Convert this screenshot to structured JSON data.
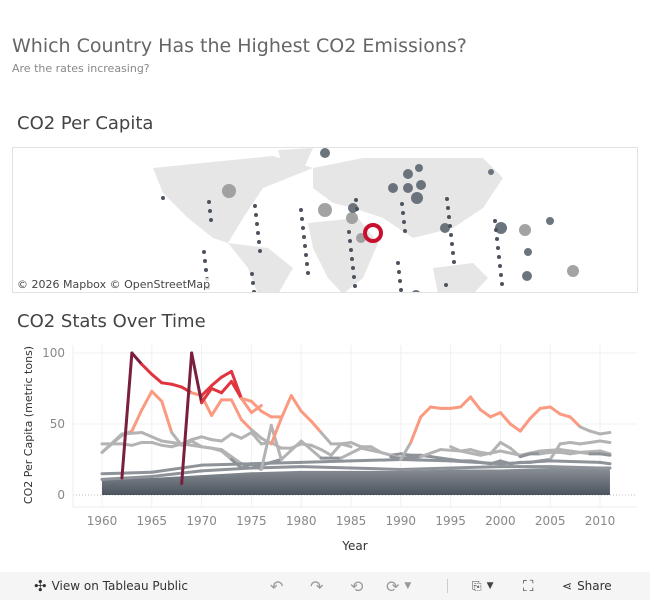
{
  "header": {
    "title": "Which Country Has the Highest CO2 Emissions?",
    "subtitle": "Are the rates increasing?"
  },
  "map": {
    "title": "CO2 Per Capita",
    "attribution": "© 2026 Mapbox  © OpenStreetMap"
  },
  "chart_section": {
    "title": "CO2 Stats Over Time"
  },
  "toolbar": {
    "view_label": "View on Tableau Public",
    "share_label": "Share",
    "icons": [
      "tableau-logo-icon",
      "undo-icon",
      "redo-icon",
      "revert-icon",
      "refresh-icon",
      "download-icon",
      "fullscreen-icon",
      "share-icon"
    ]
  },
  "colors": {
    "low": "#4b535d",
    "mid": "#b3b3b3",
    "high": "#fa9a80",
    "peak": "#e0343f",
    "spike": "#7a1f3d",
    "highlight": "#c8102e"
  },
  "chart_data": {
    "type": "line",
    "xlabel": "Year",
    "ylabel": "CO2 Per Capita (metric tons)",
    "xlim": [
      1957,
      2014
    ],
    "ylim": [
      -12,
      106
    ],
    "xticks": [
      1960,
      1965,
      1970,
      1975,
      1980,
      1985,
      1990,
      1995,
      2000,
      2005,
      2010
    ],
    "yticks": [
      0,
      50,
      100
    ],
    "grid": true,
    "series": [
      {
        "x": [
          1960,
          1961,
          1962,
          1963,
          1964,
          1965,
          1966,
          1967,
          1968,
          1969,
          1970,
          1971,
          1972,
          1973,
          1974,
          1975,
          1976,
          1977,
          1978,
          1979,
          1980,
          1981,
          1982,
          1983,
          1984,
          1985,
          1986,
          1987,
          1988,
          1989,
          1990,
          1991,
          1992,
          1993,
          1994,
          1995,
          1996,
          1997,
          1998,
          1999,
          2000,
          2001,
          2002,
          2003,
          2004,
          2005,
          2006,
          2007,
          2008,
          2009,
          2010,
          2011
        ],
        "y": [
          36,
          36,
          36,
          35,
          37,
          37,
          35,
          34,
          36,
          39,
          41,
          39,
          38,
          43,
          40,
          44,
          36,
          37,
          33,
          33,
          36,
          35,
          32,
          28,
          36,
          37,
          34,
          34,
          30,
          28,
          29,
          28,
          28,
          27,
          26,
          25,
          24,
          24,
          23,
          22,
          24,
          22,
          23,
          23,
          24,
          25,
          36,
          37,
          36,
          37,
          38,
          37
        ]
      },
      {
        "x": [
          1960,
          1962,
          1964,
          1966,
          1968,
          1970,
          1972,
          1974,
          1976,
          1978,
          1980,
          1982,
          1984,
          1986,
          1988,
          1990,
          1992,
          1994,
          1996,
          1998,
          2000,
          2002,
          2004,
          2006,
          2008,
          2010,
          2011
        ],
        "y": [
          30,
          43,
          44,
          38,
          36,
          34,
          32,
          22,
          21,
          25,
          38,
          26,
          26,
          33,
          30,
          26,
          27,
          32,
          31,
          28,
          31,
          28,
          31,
          32,
          30,
          31,
          29
        ]
      },
      {
        "x": [
          1995,
          1996,
          1997,
          1998,
          1999,
          2000,
          2001,
          2002,
          2003,
          2004,
          2005,
          2006,
          2007,
          2008,
          2009,
          2010,
          2011
        ],
        "y": [
          34,
          31,
          32,
          30,
          29,
          37,
          33,
          27,
          29,
          29,
          30,
          30,
          29,
          30,
          29,
          29,
          28
        ]
      },
      {
        "x": [
          1960,
          1965,
          1970,
          1975,
          1980,
          1985,
          1990,
          1995,
          2000,
          2005,
          2010,
          2011
        ],
        "y": [
          15,
          16,
          21,
          22,
          23,
          24,
          25,
          24,
          22,
          24,
          23,
          22
        ]
      },
      {
        "x": [
          1960,
          1965,
          1970,
          1975,
          1980,
          1985,
          1990,
          1995,
          2000,
          2005,
          2010,
          2011
        ],
        "y": [
          11,
          13,
          17,
          19,
          20,
          19,
          18,
          19,
          20,
          20,
          19,
          19
        ]
      },
      {
        "x": [
          1960,
          1962,
          1963,
          1964,
          1965,
          1966,
          1967,
          1968,
          1969,
          1970,
          1971,
          1972,
          1973,
          1974,
          1975,
          1976,
          1977,
          1978
        ],
        "y": [
          30,
          42,
          45,
          60,
          73,
          66,
          44,
          35,
          38,
          34,
          33,
          31,
          25,
          19,
          22,
          18,
          49,
          25
        ]
      },
      {
        "x": [
          1970,
          1971,
          1972,
          1973,
          1974,
          1975,
          1976,
          1977,
          1978,
          1979,
          1980,
          1981,
          1982,
          1983,
          1984,
          1985
        ],
        "y": [
          70,
          56,
          67,
          67,
          53,
          46,
          40,
          36,
          54,
          70,
          59,
          52,
          44,
          36,
          36,
          34
        ]
      },
      {
        "x": [
          1989,
          1990,
          1991,
          1992,
          1993,
          1994,
          1995,
          1996,
          1997,
          1998,
          1999,
          2000,
          2001,
          2002,
          2003,
          2004,
          2005,
          2006,
          2007,
          2008,
          2009,
          2010,
          2011
        ],
        "y": [
          27,
          25,
          37,
          55,
          62,
          61,
          61,
          62,
          69,
          60,
          55,
          58,
          50,
          45,
          54,
          61,
          62,
          57,
          55,
          48,
          45,
          43,
          44
        ]
      },
      {
        "x": [
          1962,
          1963,
          1964,
          1965,
          1966,
          1967,
          1968,
          1969,
          1970,
          1971,
          1972,
          1973,
          1974,
          1975,
          1976,
          1977,
          1978
        ],
        "y": [
          12,
          100,
          92,
          85,
          79,
          78,
          76,
          72,
          70,
          77,
          83,
          87,
          68,
          66,
          59,
          55,
          55
        ]
      },
      {
        "x": [
          1968,
          1969,
          1970,
          1971,
          1972,
          1973,
          1974,
          1975,
          1976
        ],
        "y": [
          8,
          100,
          65,
          75,
          72,
          80,
          68,
          58,
          63
        ]
      }
    ],
    "band_upper": {
      "x": [
        1960,
        1965,
        1970,
        1975,
        1980,
        1985,
        1990,
        1995,
        2000,
        2005,
        2010,
        2011
      ],
      "y": [
        11,
        12,
        14,
        16,
        17,
        17,
        17,
        18,
        18,
        19,
        19,
        19
      ]
    }
  }
}
